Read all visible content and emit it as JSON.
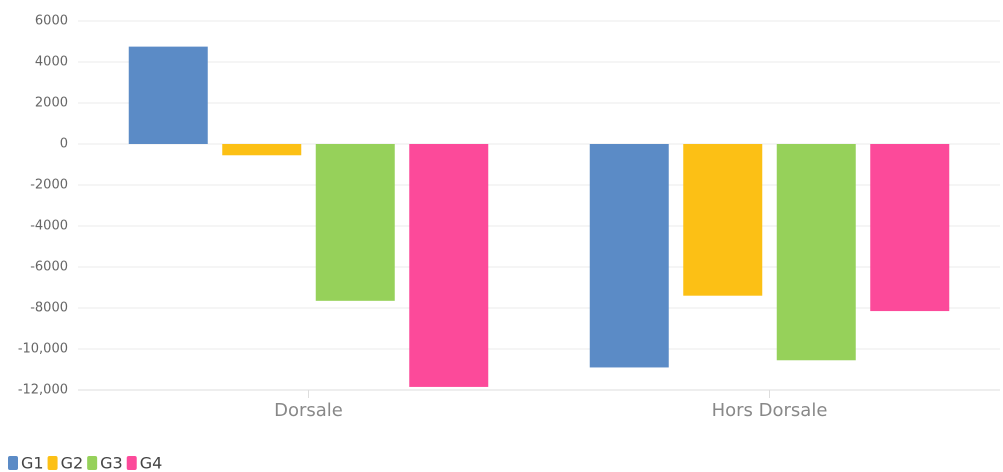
{
  "chart_data": {
    "type": "bar",
    "categories": [
      "Dorsale",
      "Hors Dorsale"
    ],
    "series": [
      {
        "name": "G1",
        "color": "#5b8bc6",
        "values": [
          4750,
          -10900
        ]
      },
      {
        "name": "G2",
        "color": "#fcc015",
        "values": [
          -550,
          -7400
        ]
      },
      {
        "name": "G3",
        "color": "#96d15a",
        "values": [
          -7650,
          -10550
        ]
      },
      {
        "name": "G4",
        "color": "#fc4a9a",
        "values": [
          -11850,
          -8150
        ]
      }
    ],
    "ylim": [
      -12000,
      6000
    ],
    "yticks": [
      {
        "value": -12000,
        "label": "-12,000"
      },
      {
        "value": -10000,
        "label": "-10,000"
      },
      -8000,
      -6000,
      -4000,
      -2000,
      0,
      2000,
      4000,
      6000
    ],
    "grid": true,
    "legend": "bottom-left"
  }
}
